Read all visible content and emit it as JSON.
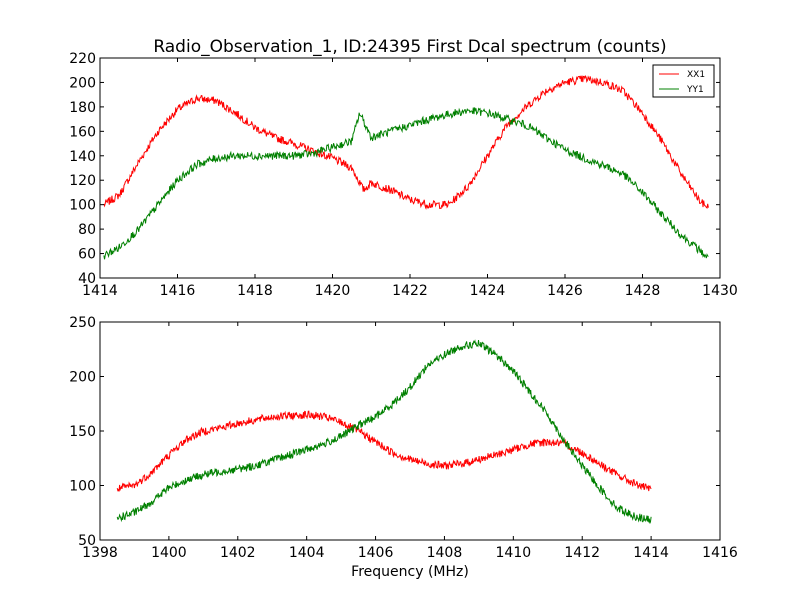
{
  "chart_data": [
    {
      "type": "line",
      "title": "Radio_Observation_1, ID:24395 First Dcal spectrum (counts)",
      "xlabel": "",
      "ylabel": "",
      "xlim": [
        1414,
        1430
      ],
      "ylim": [
        40,
        220
      ],
      "xticks": [
        1414,
        1416,
        1418,
        1420,
        1422,
        1424,
        1426,
        1428,
        1430
      ],
      "yticks": [
        40,
        60,
        80,
        100,
        120,
        140,
        160,
        180,
        200,
        220
      ],
      "legend": {
        "placement": "top-right",
        "entries": [
          "XX1",
          "YY1"
        ]
      },
      "grid": false,
      "series": [
        {
          "name": "XX1",
          "color": "#ff0000",
          "x": [
            1414.1,
            1414.5,
            1415.0,
            1415.5,
            1416.0,
            1416.5,
            1417.0,
            1417.5,
            1418.0,
            1418.5,
            1419.0,
            1419.5,
            1420.0,
            1420.5,
            1420.8,
            1421.0,
            1421.5,
            1422.0,
            1422.5,
            1423.0,
            1423.5,
            1424.0,
            1424.5,
            1425.0,
            1425.5,
            1426.0,
            1426.5,
            1427.0,
            1427.5,
            1428.0,
            1428.5,
            1429.0,
            1429.5,
            1429.7
          ],
          "y": [
            100,
            108,
            135,
            160,
            178,
            187,
            185,
            175,
            163,
            155,
            150,
            144,
            138,
            130,
            112,
            118,
            112,
            104,
            100,
            100,
            115,
            140,
            165,
            180,
            193,
            200,
            203,
            200,
            193,
            175,
            152,
            125,
            102,
            98
          ]
        },
        {
          "name": "YY1",
          "color": "#008000",
          "x": [
            1414.1,
            1414.5,
            1415.0,
            1415.5,
            1416.0,
            1416.5,
            1417.0,
            1417.5,
            1418.0,
            1418.5,
            1419.0,
            1419.5,
            1420.0,
            1420.5,
            1420.7,
            1421.0,
            1421.5,
            1422.0,
            1422.5,
            1423.0,
            1423.5,
            1424.0,
            1424.5,
            1425.0,
            1425.5,
            1426.0,
            1426.5,
            1427.0,
            1427.5,
            1428.0,
            1428.5,
            1429.0,
            1429.5,
            1429.7
          ],
          "y": [
            58,
            65,
            80,
            100,
            120,
            133,
            138,
            140,
            140,
            140,
            140,
            142,
            147,
            152,
            175,
            155,
            160,
            165,
            170,
            174,
            177,
            175,
            170,
            165,
            155,
            145,
            138,
            132,
            125,
            110,
            92,
            75,
            62,
            56
          ]
        }
      ]
    },
    {
      "type": "line",
      "title": "",
      "xlabel": "Frequency (MHz)",
      "ylabel": "",
      "xlim": [
        1398,
        1416
      ],
      "ylim": [
        50,
        250
      ],
      "xticks": [
        1398,
        1400,
        1402,
        1404,
        1406,
        1408,
        1410,
        1412,
        1414,
        1416
      ],
      "yticks": [
        50,
        100,
        150,
        200,
        250
      ],
      "legend": null,
      "grid": false,
      "series": [
        {
          "color": "#ff0000",
          "x": [
            1398.5,
            1399.0,
            1399.5,
            1400.0,
            1400.5,
            1401.0,
            1401.5,
            1402.0,
            1402.5,
            1403.0,
            1403.5,
            1404.0,
            1404.5,
            1405.0,
            1405.5,
            1406.0,
            1406.5,
            1407.0,
            1407.5,
            1408.0,
            1408.5,
            1409.0,
            1409.5,
            1410.0,
            1410.5,
            1411.0,
            1411.5,
            1412.0,
            1412.5,
            1413.0,
            1413.5,
            1414.0
          ],
          "y": [
            97,
            100,
            112,
            128,
            142,
            150,
            153,
            157,
            160,
            163,
            164,
            165,
            163,
            158,
            150,
            140,
            130,
            124,
            120,
            118,
            120,
            124,
            128,
            133,
            138,
            140,
            138,
            130,
            120,
            110,
            102,
            96
          ]
        },
        {
          "color": "#008000",
          "x": [
            1398.5,
            1399.0,
            1399.5,
            1400.0,
            1400.5,
            1401.0,
            1401.5,
            1402.0,
            1402.5,
            1403.0,
            1403.5,
            1404.0,
            1404.5,
            1405.0,
            1405.5,
            1406.0,
            1406.5,
            1407.0,
            1407.5,
            1408.0,
            1408.5,
            1409.0,
            1409.5,
            1410.0,
            1410.5,
            1411.0,
            1411.5,
            1412.0,
            1412.5,
            1413.0,
            1413.5,
            1414.0
          ],
          "y": [
            70,
            75,
            85,
            98,
            105,
            110,
            113,
            115,
            118,
            123,
            128,
            133,
            138,
            145,
            155,
            163,
            175,
            190,
            210,
            220,
            228,
            230,
            220,
            205,
            185,
            165,
            140,
            118,
            98,
            80,
            72,
            68
          ]
        }
      ]
    }
  ]
}
